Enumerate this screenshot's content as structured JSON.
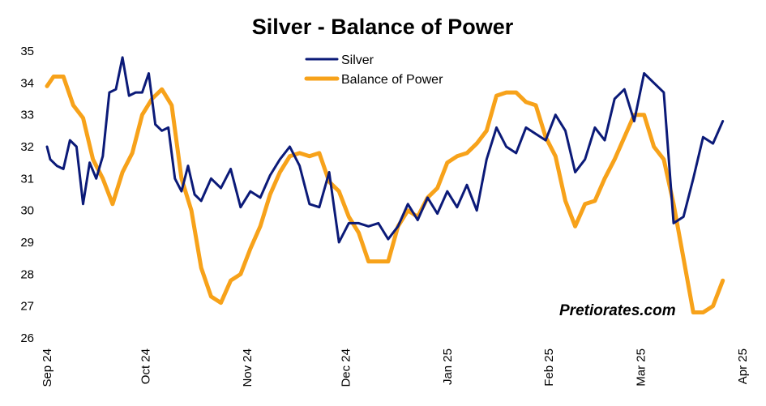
{
  "chart_data": {
    "type": "line",
    "title": "Silver - Balance of Power",
    "xlabel": "",
    "ylabel": "",
    "ylim": [
      26,
      35
    ],
    "yticks": [
      26,
      27,
      28,
      29,
      30,
      31,
      32,
      33,
      34,
      35
    ],
    "xlim": [
      "2024-09-01",
      "2025-04-01"
    ],
    "xtick_labels": [
      "Sep 24",
      "Oct 24",
      "Nov 24",
      "Dec 24",
      "Jan 25",
      "Feb 25",
      "Mar 25",
      "Apr 25"
    ],
    "grid": false,
    "legend_position": "top-center",
    "watermark": "Pretiorates.com",
    "colors": {
      "silver": "#0b1a78",
      "balance": "#f7a21a"
    },
    "series": [
      {
        "name": "Silver",
        "color": "#0b1a78",
        "x": [
          "2024-09-01",
          "2024-09-02",
          "2024-09-04",
          "2024-09-06",
          "2024-09-08",
          "2024-09-10",
          "2024-09-12",
          "2024-09-14",
          "2024-09-16",
          "2024-09-18",
          "2024-09-20",
          "2024-09-22",
          "2024-09-24",
          "2024-09-26",
          "2024-09-28",
          "2024-09-30",
          "2024-10-02",
          "2024-10-04",
          "2024-10-06",
          "2024-10-08",
          "2024-10-10",
          "2024-10-12",
          "2024-10-14",
          "2024-10-16",
          "2024-10-18",
          "2024-10-21",
          "2024-10-24",
          "2024-10-27",
          "2024-10-30",
          "2024-11-02",
          "2024-11-05",
          "2024-11-08",
          "2024-11-11",
          "2024-11-14",
          "2024-11-17",
          "2024-11-20",
          "2024-11-23",
          "2024-11-26",
          "2024-11-29",
          "2024-12-02",
          "2024-12-05",
          "2024-12-08",
          "2024-12-11",
          "2024-12-14",
          "2024-12-17",
          "2024-12-20",
          "2024-12-23",
          "2024-12-26",
          "2024-12-29",
          "2025-01-01",
          "2025-01-04",
          "2025-01-07",
          "2025-01-10",
          "2025-01-13",
          "2025-01-16",
          "2025-01-19",
          "2025-01-22",
          "2025-01-25",
          "2025-01-28",
          "2025-01-31",
          "2025-02-03",
          "2025-02-06",
          "2025-02-09",
          "2025-02-12",
          "2025-02-15",
          "2025-02-18",
          "2025-02-21",
          "2025-02-24",
          "2025-02-27",
          "2025-03-02",
          "2025-03-05",
          "2025-03-08",
          "2025-03-11",
          "2025-03-14",
          "2025-03-17",
          "2025-03-20",
          "2025-03-23",
          "2025-03-26"
        ],
        "values": [
          32.0,
          31.6,
          31.4,
          31.3,
          32.2,
          32.0,
          30.2,
          31.5,
          31.0,
          31.7,
          33.7,
          33.8,
          34.8,
          33.6,
          33.7,
          33.7,
          34.3,
          32.7,
          32.5,
          32.6,
          31.0,
          30.6,
          31.4,
          30.5,
          30.3,
          31.0,
          30.7,
          31.3,
          30.1,
          30.6,
          30.4,
          31.1,
          31.6,
          32.0,
          31.4,
          30.2,
          30.1,
          31.2,
          29.0,
          29.6,
          29.6,
          29.5,
          29.6,
          29.1,
          29.5,
          30.2,
          29.7,
          30.4,
          29.9,
          30.6,
          30.1,
          30.8,
          30.0,
          31.6,
          32.6,
          32.0,
          31.8,
          32.6,
          32.4,
          32.2,
          33.0,
          32.5,
          31.2,
          31.6,
          32.6,
          32.2,
          33.5,
          33.8,
          32.8,
          34.3,
          34.0,
          33.7,
          29.6,
          29.8,
          31.0,
          32.3,
          32.1,
          32.8
        ]
      },
      {
        "name": "Balance of Power",
        "color": "#f7a21a",
        "x": [
          "2024-09-01",
          "2024-09-03",
          "2024-09-06",
          "2024-09-09",
          "2024-09-12",
          "2024-09-15",
          "2024-09-18",
          "2024-09-21",
          "2024-09-24",
          "2024-09-27",
          "2024-09-30",
          "2024-10-03",
          "2024-10-06",
          "2024-10-09",
          "2024-10-12",
          "2024-10-15",
          "2024-10-18",
          "2024-10-21",
          "2024-10-24",
          "2024-10-27",
          "2024-10-30",
          "2024-11-02",
          "2024-11-05",
          "2024-11-08",
          "2024-11-11",
          "2024-11-14",
          "2024-11-17",
          "2024-11-20",
          "2024-11-23",
          "2024-11-26",
          "2024-11-29",
          "2024-12-02",
          "2024-12-05",
          "2024-12-08",
          "2024-12-11",
          "2024-12-14",
          "2024-12-17",
          "2024-12-20",
          "2024-12-23",
          "2024-12-26",
          "2024-12-29",
          "2025-01-01",
          "2025-01-04",
          "2025-01-07",
          "2025-01-10",
          "2025-01-13",
          "2025-01-16",
          "2025-01-19",
          "2025-01-22",
          "2025-01-25",
          "2025-01-28",
          "2025-01-31",
          "2025-02-03",
          "2025-02-06",
          "2025-02-09",
          "2025-02-12",
          "2025-02-15",
          "2025-02-18",
          "2025-02-21",
          "2025-02-24",
          "2025-02-27",
          "2025-03-02",
          "2025-03-05",
          "2025-03-08",
          "2025-03-11",
          "2025-03-14",
          "2025-03-17",
          "2025-03-20",
          "2025-03-23",
          "2025-03-26"
        ],
        "values": [
          33.9,
          34.2,
          34.2,
          33.3,
          32.9,
          31.6,
          31.0,
          30.2,
          31.2,
          31.8,
          33.0,
          33.5,
          33.8,
          33.3,
          31.0,
          30.0,
          28.2,
          27.3,
          27.1,
          27.8,
          28.0,
          28.8,
          29.5,
          30.5,
          31.2,
          31.7,
          31.8,
          31.7,
          31.8,
          30.9,
          30.6,
          29.8,
          29.3,
          28.4,
          28.4,
          28.4,
          29.5,
          30.0,
          29.8,
          30.4,
          30.7,
          31.5,
          31.7,
          31.8,
          32.1,
          32.5,
          33.6,
          33.7,
          33.7,
          33.4,
          33.3,
          32.3,
          31.7,
          30.3,
          29.5,
          30.2,
          30.3,
          31.0,
          31.6,
          32.3,
          33.0,
          33.0,
          32.0,
          31.6,
          30.2,
          28.5,
          26.8,
          26.8,
          27.0,
          27.8
        ]
      }
    ]
  }
}
